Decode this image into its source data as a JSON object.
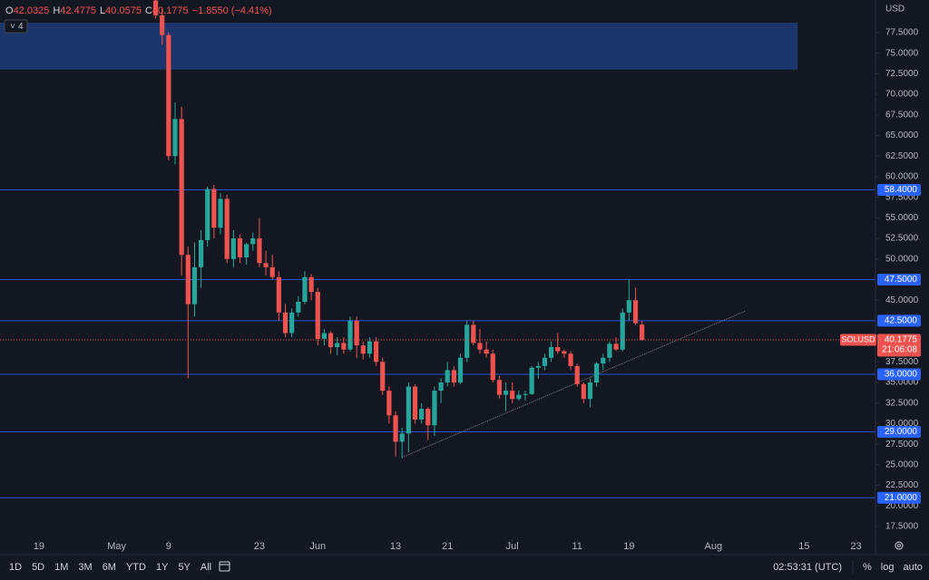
{
  "chart_data": {
    "type": "candlestick",
    "symbol": "SOLUSD",
    "currency": "USD",
    "countdown": "21:06:08",
    "header_labels": [
      "O",
      "H",
      "L",
      "C"
    ],
    "change": "−1.8550 (−4.41%)",
    "indicator_count": "4",
    "up_color": "#26a69a",
    "down_color": "#ef5350",
    "x": [
      "05-07",
      "05-08",
      "05-09",
      "05-10",
      "05-11",
      "05-12",
      "05-13",
      "05-14",
      "05-15",
      "05-16",
      "05-17",
      "05-18",
      "05-19",
      "05-20",
      "05-21",
      "05-22",
      "05-23",
      "05-24",
      "05-25",
      "05-26",
      "05-27",
      "05-28",
      "05-29",
      "05-30",
      "05-31",
      "06-01",
      "06-02",
      "06-03",
      "06-04",
      "06-05",
      "06-06",
      "06-07",
      "06-08",
      "06-09",
      "06-10",
      "06-11",
      "06-12",
      "06-13",
      "06-14",
      "06-15",
      "06-16",
      "06-17",
      "06-18",
      "06-19",
      "06-20",
      "06-21",
      "06-22",
      "06-23",
      "06-24",
      "06-25",
      "06-26",
      "06-27",
      "06-28",
      "06-29",
      "06-30",
      "07-01",
      "07-02",
      "07-03",
      "07-04",
      "07-05",
      "07-06",
      "07-07",
      "07-08",
      "07-09",
      "07-10",
      "07-11",
      "07-12",
      "07-13",
      "07-14",
      "07-15",
      "07-16",
      "07-17",
      "07-18",
      "07-19",
      "07-20",
      "07-21"
    ],
    "ohlc": [
      [
        81.4,
        81.46,
        79.2,
        79.6
      ],
      [
        79.6,
        80.5,
        76.0,
        77.2
      ],
      [
        77.2,
        77.5,
        62.0,
        62.5
      ],
      [
        62.5,
        69.0,
        61.5,
        67.0
      ],
      [
        67.0,
        68.5,
        48.0,
        50.5
      ],
      [
        50.5,
        51.5,
        35.5,
        44.5
      ],
      [
        44.5,
        52.0,
        43.0,
        49.0
      ],
      [
        49.0,
        53.5,
        46.5,
        52.3
      ],
      [
        52.3,
        58.8,
        51.5,
        58.5
      ],
      [
        58.5,
        59.0,
        52.5,
        53.8
      ],
      [
        53.8,
        58.0,
        53.0,
        57.3
      ],
      [
        57.3,
        57.8,
        49.5,
        50.0
      ],
      [
        50.0,
        53.5,
        49.0,
        52.5
      ],
      [
        52.5,
        53.0,
        49.5,
        50.2
      ],
      [
        50.2,
        52.0,
        49.3,
        51.8
      ],
      [
        51.8,
        53.2,
        51.0,
        52.5
      ],
      [
        52.5,
        55.0,
        49.0,
        49.5
      ],
      [
        49.5,
        51.0,
        48.0,
        49.0
      ],
      [
        49.0,
        50.5,
        47.5,
        47.8
      ],
      [
        47.8,
        48.5,
        42.5,
        43.5
      ],
      [
        43.5,
        44.5,
        40.5,
        41.0
      ],
      [
        41.0,
        44.0,
        40.5,
        43.5
      ],
      [
        43.5,
        45.5,
        43.0,
        44.8
      ],
      [
        44.8,
        48.5,
        44.5,
        47.8
      ],
      [
        47.8,
        48.2,
        45.0,
        46.0
      ],
      [
        46.0,
        46.5,
        39.5,
        40.3
      ],
      [
        40.3,
        41.5,
        39.5,
        41.0
      ],
      [
        41.0,
        41.2,
        38.5,
        39.3
      ],
      [
        39.3,
        40.5,
        38.3,
        39.8
      ],
      [
        39.8,
        40.5,
        38.5,
        39.0
      ],
      [
        39.0,
        43.0,
        38.8,
        42.5
      ],
      [
        42.5,
        43.0,
        38.0,
        39.5
      ],
      [
        39.5,
        40.0,
        37.8,
        38.5
      ],
      [
        38.5,
        40.5,
        38.0,
        40.0
      ],
      [
        40.0,
        40.5,
        37.0,
        37.5
      ],
      [
        37.5,
        38.0,
        33.5,
        34.0
      ],
      [
        34.0,
        34.5,
        30.0,
        31.0
      ],
      [
        31.0,
        31.5,
        26.0,
        27.8
      ],
      [
        27.8,
        29.5,
        25.8,
        28.8
      ],
      [
        28.8,
        35.0,
        26.5,
        34.5
      ],
      [
        34.5,
        34.8,
        30.0,
        30.5
      ],
      [
        30.5,
        32.5,
        30.0,
        31.8
      ],
      [
        31.8,
        32.0,
        28.0,
        29.8
      ],
      [
        29.8,
        34.5,
        28.5,
        34.0
      ],
      [
        34.0,
        35.5,
        32.5,
        35.0
      ],
      [
        35.0,
        37.5,
        34.5,
        36.5
      ],
      [
        36.5,
        37.0,
        34.5,
        35.0
      ],
      [
        35.0,
        38.5,
        34.8,
        38.0
      ],
      [
        38.0,
        42.5,
        37.5,
        42.0
      ],
      [
        42.0,
        42.5,
        39.5,
        39.8
      ],
      [
        39.8,
        41.5,
        38.5,
        39.0
      ],
      [
        39.0,
        40.0,
        38.0,
        38.5
      ],
      [
        38.5,
        39.0,
        35.0,
        35.3
      ],
      [
        35.3,
        35.8,
        33.0,
        33.5
      ],
      [
        33.5,
        35.0,
        31.5,
        34.0
      ],
      [
        34.0,
        35.0,
        32.5,
        33.0
      ],
      [
        33.0,
        34.0,
        32.8,
        33.5
      ],
      [
        33.5,
        34.0,
        32.8,
        33.6
      ],
      [
        33.6,
        37.0,
        33.5,
        36.8
      ],
      [
        36.8,
        37.5,
        35.5,
        37.0
      ],
      [
        37.0,
        38.5,
        36.5,
        38.0
      ],
      [
        38.0,
        40.0,
        37.5,
        39.3
      ],
      [
        39.3,
        41.0,
        38.5,
        38.8
      ],
      [
        38.8,
        39.0,
        38.0,
        38.5
      ],
      [
        38.5,
        38.8,
        36.5,
        37.0
      ],
      [
        37.0,
        37.3,
        34.5,
        34.8
      ],
      [
        34.8,
        35.0,
        32.5,
        33.0
      ],
      [
        33.0,
        35.5,
        32.0,
        35.0
      ],
      [
        35.0,
        37.5,
        34.5,
        37.3
      ],
      [
        37.3,
        38.5,
        36.5,
        38.0
      ],
      [
        38.0,
        40.0,
        37.5,
        39.7
      ],
      [
        39.7,
        40.5,
        38.8,
        39.0
      ],
      [
        39.0,
        44.0,
        38.8,
        43.5
      ],
      [
        43.5,
        47.5,
        42.5,
        45.0
      ],
      [
        45.0,
        46.5,
        42.0,
        42.2
      ],
      [
        42.0325,
        42.4775,
        40.0575,
        40.1775
      ]
    ],
    "xlim": [
      "04-13",
      "08-26"
    ],
    "xticks": [
      {
        "value": "04-19",
        "label": "19"
      },
      {
        "value": "05-01",
        "label": "May"
      },
      {
        "value": "05-09",
        "label": "9"
      },
      {
        "value": "05-23",
        "label": "23"
      },
      {
        "value": "06-01",
        "label": "Jun"
      },
      {
        "value": "06-13",
        "label": "13"
      },
      {
        "value": "06-21",
        "label": "21"
      },
      {
        "value": "07-01",
        "label": "Jul"
      },
      {
        "value": "07-11",
        "label": "11"
      },
      {
        "value": "07-19",
        "label": "19"
      },
      {
        "value": "08-01",
        "label": "Aug"
      },
      {
        "value": "08-15",
        "label": "15"
      },
      {
        "value": "08-23",
        "label": "23"
      }
    ],
    "ylim": [
      15.96,
      81.46
    ],
    "yticks": [
      {
        "value": 77.5,
        "label": "77.5000"
      },
      {
        "value": 75,
        "label": "75.0000"
      },
      {
        "value": 72.5,
        "label": "72.5000"
      },
      {
        "value": 70,
        "label": "70.0000"
      },
      {
        "value": 67.5,
        "label": "67.5000"
      },
      {
        "value": 65,
        "label": "65.0000"
      },
      {
        "value": 62.5,
        "label": "62.5000"
      },
      {
        "value": 60,
        "label": "60.0000"
      },
      {
        "value": 57.5,
        "label": "57.5000"
      },
      {
        "value": 55,
        "label": "55.0000"
      },
      {
        "value": 52.5,
        "label": "52.5000"
      },
      {
        "value": 50,
        "label": "50.0000"
      },
      {
        "value": 45,
        "label": "45.0000"
      },
      {
        "value": 37.5,
        "label": "37.5000"
      },
      {
        "value": 35,
        "label": "35.0000"
      },
      {
        "value": 32.5,
        "label": "32.5000"
      },
      {
        "value": 30,
        "label": "30.0000"
      },
      {
        "value": 27.5,
        "label": "27.5000"
      },
      {
        "value": 25,
        "label": "25.0000"
      },
      {
        "value": 22.5,
        "label": "22.5000"
      },
      {
        "value": 20,
        "label": "20.0000"
      },
      {
        "value": 17.5,
        "label": "17.5000"
      }
    ],
    "levels": [
      {
        "value": 58.4,
        "label": "58.4000"
      },
      {
        "value": 47.5,
        "label": "47.5000"
      },
      {
        "value": 42.5,
        "label": "42.5000"
      },
      {
        "value": 36,
        "label": "36.0000"
      },
      {
        "value": 29,
        "label": "29.0000"
      },
      {
        "value": 21,
        "label": "21.0000"
      }
    ],
    "level_color": "#2962ff",
    "zone": {
      "top": 78.7,
      "bottom": 73.0,
      "x_end": "08-14",
      "color": "#1e3a74"
    },
    "trendline": [
      {
        "x": "06-14",
        "y": 25.9
      },
      {
        "x": "08-06",
        "y": 43.7
      }
    ]
  },
  "toolbar": {
    "ranges": [
      "1D",
      "5D",
      "1M",
      "3M",
      "6M",
      "YTD",
      "1Y",
      "5Y",
      "All"
    ],
    "clock": "02:53:31 (UTC)",
    "options": [
      "%",
      "log",
      "auto"
    ]
  }
}
